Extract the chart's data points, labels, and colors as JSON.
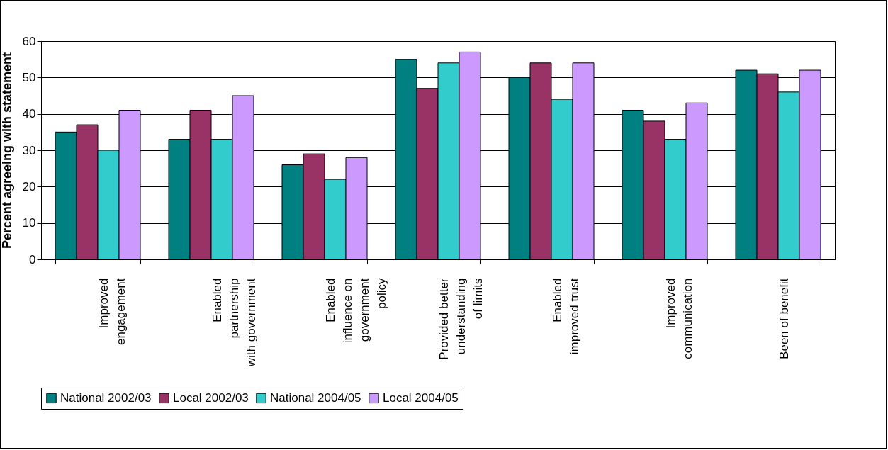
{
  "chart_data": {
    "type": "bar",
    "ylabel": "Percent agreeing with statement",
    "categories": [
      "Improved engagement",
      "Enabled partnership with government",
      "Enabled influence on government policy",
      "Provided better understanding of limits",
      "Enabled improved trust",
      "Improved communication",
      "Been of benefit"
    ],
    "series": [
      {
        "name": "National 2002/03",
        "color": "#008080",
        "values": [
          35,
          33,
          26,
          55,
          50,
          41,
          52
        ]
      },
      {
        "name": "Local 2002/03",
        "color": "#993366",
        "values": [
          37,
          41,
          29,
          47,
          54,
          38,
          51
        ]
      },
      {
        "name": "National 2004/05",
        "color": "#33cccc",
        "values": [
          30,
          33,
          22,
          54,
          44,
          33,
          46
        ]
      },
      {
        "name": "Local 2004/05",
        "color": "#cc99ff",
        "values": [
          41,
          45,
          28,
          57,
          54,
          43,
          52
        ]
      }
    ],
    "ylim": [
      0,
      60
    ],
    "yticks": [
      0,
      10,
      20,
      30,
      40,
      50,
      60
    ],
    "grid": "y",
    "legend": "bottom"
  }
}
